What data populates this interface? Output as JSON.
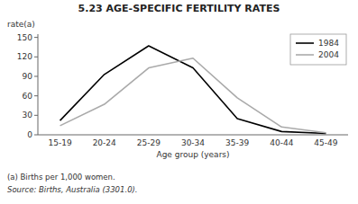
{
  "chart_data": {
    "type": "line",
    "title": "5.23  AGE-SPECIFIC FERTILITY RATES",
    "x_label": "Age group (years)",
    "y_label": "rate(a)",
    "categories": [
      "15-19",
      "20-24",
      "25-29",
      "30-34",
      "35-39",
      "40-44",
      "45-49"
    ],
    "series": [
      {
        "name": "1984",
        "color": "#000000",
        "values": [
          22,
          93,
          137,
          103,
          25,
          5,
          2
        ]
      },
      {
        "name": "2004",
        "color": "#aaaaaa",
        "values": [
          14,
          47,
          103,
          118,
          57,
          12,
          3
        ]
      }
    ],
    "ylim": [
      0,
      155
    ],
    "yticks": [
      0,
      30,
      60,
      90,
      120,
      150
    ],
    "grid": false,
    "legend": "upper right",
    "annotations": [
      "(a) Births per 1,000 women.",
      "Source:  Births, Australia (3301.0)."
    ]
  }
}
